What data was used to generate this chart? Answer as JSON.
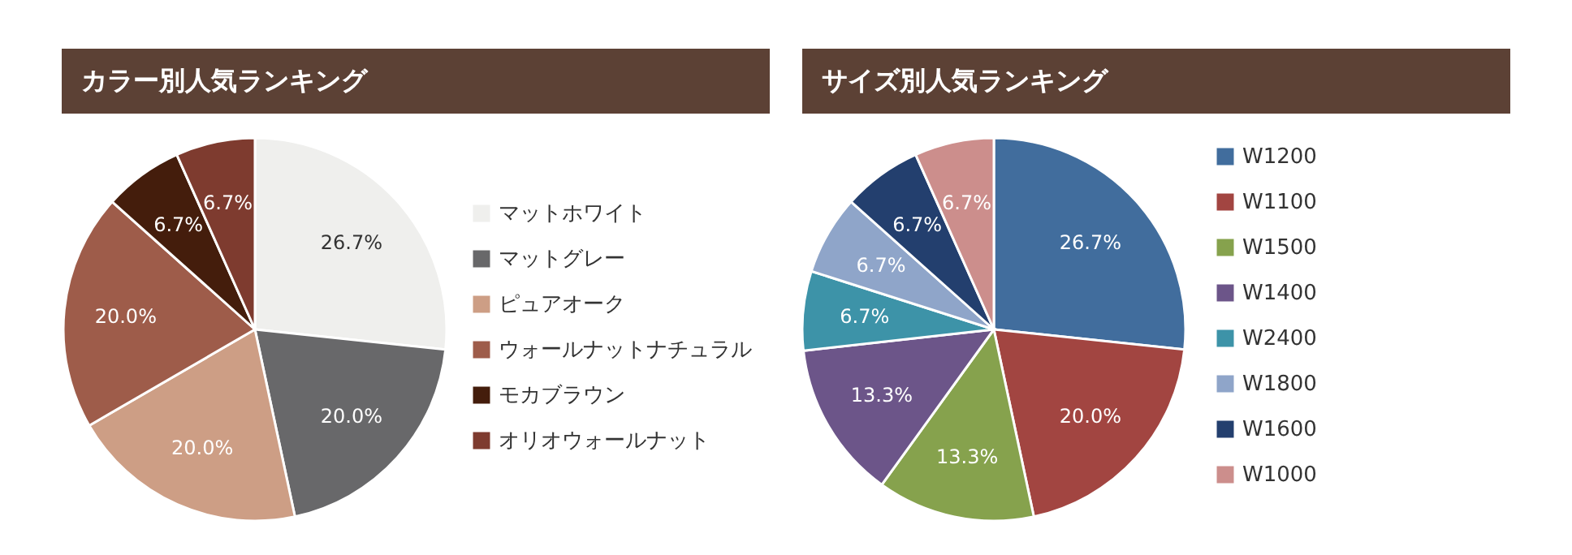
{
  "chart_data": [
    {
      "type": "pie",
      "title": "カラー別人気ランキング",
      "categories": [
        "マットホワイト",
        "マットグレー",
        "ピュアオーク",
        "ウォールナットナチュラル",
        "モカブラウン",
        "オリオウォールナット"
      ],
      "values": [
        26.7,
        20.0,
        20.0,
        20.0,
        6.7,
        6.7
      ],
      "colors": [
        "#efefed",
        "#68686a",
        "#cd9e85",
        "#9e5c4a",
        "#441d0c",
        "#7e3b2f"
      ],
      "value_labels": [
        "26.7%",
        "20.0%",
        "20.0%",
        "20.0%",
        "6.7%",
        "6.7%"
      ],
      "legend": "right"
    },
    {
      "type": "pie",
      "title": "サイズ別人気ランキング",
      "categories": [
        "W1200",
        "W1100",
        "W1500",
        "W1400",
        "W2400",
        "W1800",
        "W1600",
        "W1000"
      ],
      "values": [
        26.7,
        20.0,
        13.3,
        13.3,
        6.7,
        6.7,
        6.7,
        6.7
      ],
      "colors": [
        "#416d9d",
        "#a24541",
        "#86a24d",
        "#6c5589",
        "#3d93a8",
        "#8fa5c9",
        "#233f6e",
        "#cc8e8c"
      ],
      "value_labels": [
        "26.7%",
        "20.0%",
        "13.3%",
        "13.3%",
        "6.7%",
        "6.7%",
        "6.7%",
        "6.7%"
      ],
      "legend": "right"
    }
  ]
}
